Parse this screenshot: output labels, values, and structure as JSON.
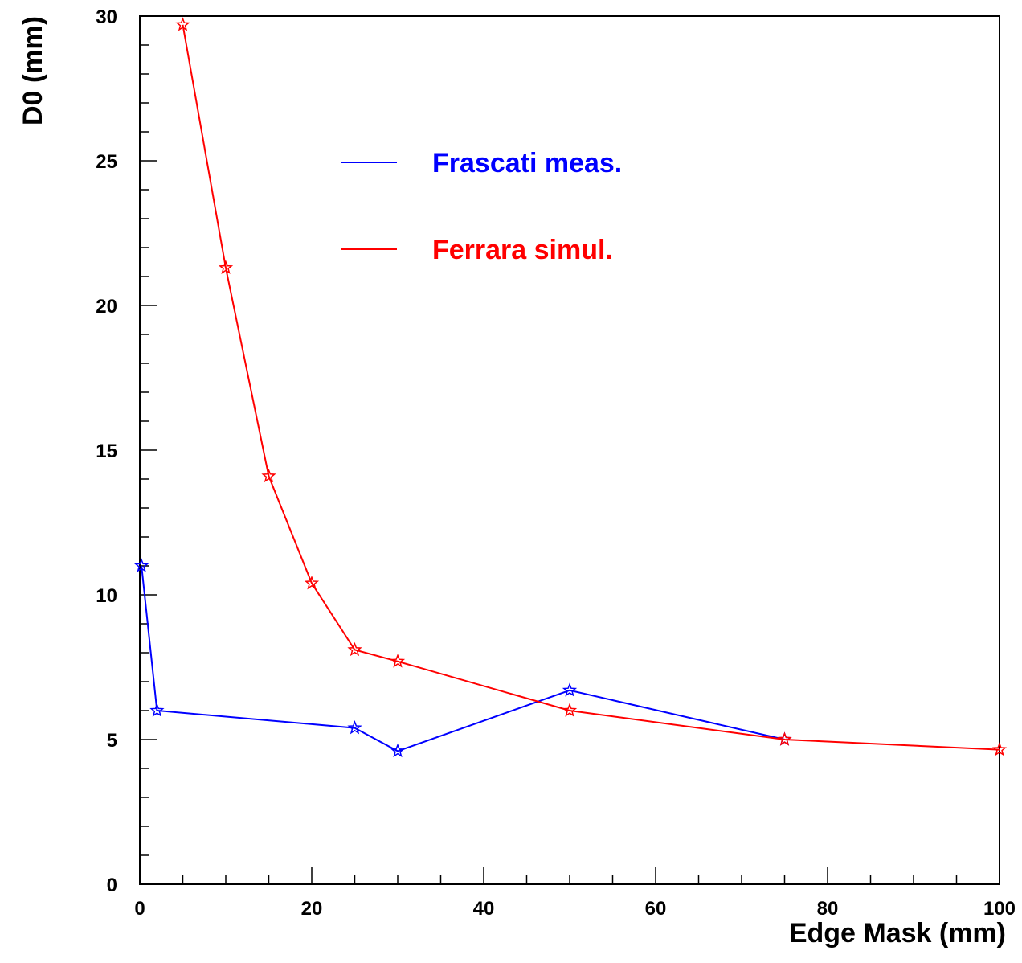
{
  "chart_data": {
    "type": "line",
    "title": "",
    "xlabel": "Edge Mask (mm)",
    "ylabel": "D0 (mm)",
    "xlim": [
      0,
      100
    ],
    "ylim": [
      0,
      30
    ],
    "x_ticks": [
      0,
      20,
      40,
      60,
      80,
      100
    ],
    "y_ticks": [
      0,
      5,
      10,
      15,
      20,
      25,
      30
    ],
    "grid": false,
    "legend_placement": "upper-center",
    "series": [
      {
        "name": "Frascati meas.",
        "color": "#0000ff",
        "marker": "star",
        "x": [
          0.2,
          2,
          25,
          30,
          50,
          75
        ],
        "y": [
          11.0,
          6.0,
          5.4,
          4.6,
          6.7,
          5.0
        ]
      },
      {
        "name": "Ferrara simul.",
        "color": "#ff0000",
        "marker": "star",
        "x": [
          5,
          10,
          15,
          20,
          25,
          30,
          50,
          75,
          100
        ],
        "y": [
          29.7,
          21.3,
          14.1,
          10.4,
          8.1,
          7.7,
          6.0,
          5.0,
          4.65
        ]
      }
    ]
  }
}
